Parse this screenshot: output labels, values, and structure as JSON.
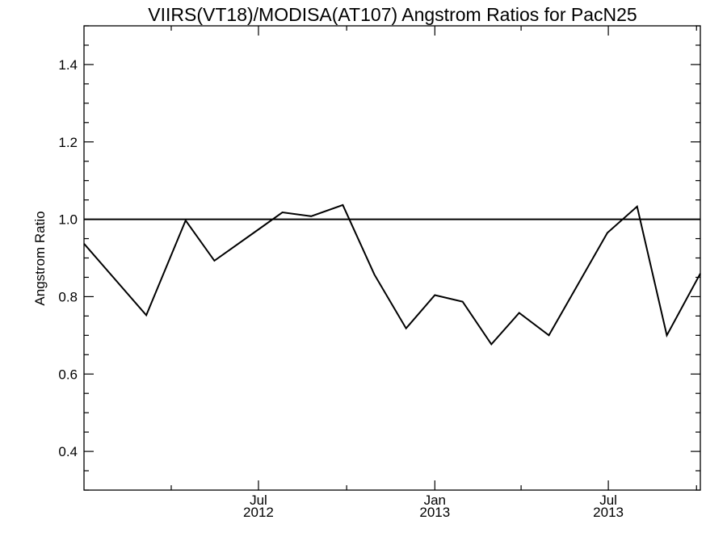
{
  "chart_data": {
    "type": "line",
    "title": "VIIRS(VT18)/MODISA(AT107)  Angstrom Ratios for PacN25",
    "xlabel": "",
    "ylabel": "Angstrom Ratio",
    "xlim": [
      "2012-01-01",
      "2013-10-05"
    ],
    "ylim": [
      0.3,
      1.5
    ],
    "y_ticks": [
      0.4,
      0.6,
      0.8,
      1.0,
      1.2,
      1.4
    ],
    "y_tick_labels": [
      "0.4",
      "0.6",
      "0.8",
      "1.0",
      "1.2",
      "1.4"
    ],
    "x_ticks": [
      {
        "date": "2012-07-01",
        "line1": "Jul",
        "line2": "2012"
      },
      {
        "date": "2013-01-01",
        "line1": "Jan",
        "line2": "2013"
      },
      {
        "date": "2013-07-01",
        "line1": "Jul",
        "line2": "2013"
      }
    ],
    "reference_line": {
      "y": 1.0
    },
    "grid": false,
    "series": [
      {
        "x": [
          "2012-01-01",
          "2012-03-06",
          "2012-04-16",
          "2012-05-16",
          "2012-06-30",
          "2012-07-26",
          "2012-08-25",
          "2012-09-27",
          "2012-10-30",
          "2012-12-02",
          "2013-01-01",
          "2013-01-30",
          "2013-03-01",
          "2013-03-30",
          "2013-04-30",
          "2013-06-30",
          "2013-07-31",
          "2013-08-31",
          "2013-10-05"
        ],
        "y": [
          0.937,
          0.752,
          0.997,
          0.893,
          0.972,
          1.018,
          1.008,
          1.037,
          0.857,
          0.718,
          0.804,
          0.787,
          0.677,
          0.758,
          0.7,
          0.965,
          1.033,
          0.7,
          0.86
        ]
      }
    ]
  }
}
